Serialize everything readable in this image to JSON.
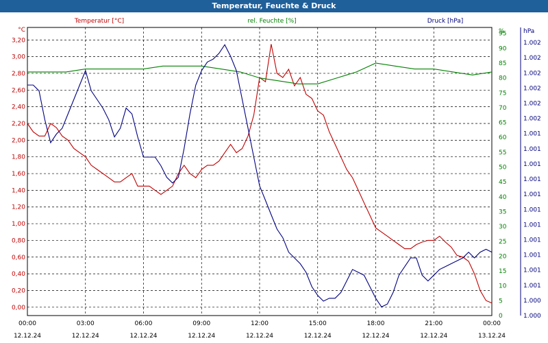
{
  "header": {
    "title": "Temperatur, Feuchte & Druck"
  },
  "chart_data": {
    "type": "line",
    "title": "Temperatur, Feuchte & Druck",
    "grid": true,
    "x_range": [
      "12.12.24 00:00",
      "13.12.24 00:00"
    ],
    "x_ticks": [
      {
        "time": "00:00",
        "date": "12.12.24"
      },
      {
        "time": "03:00",
        "date": "12.12.24"
      },
      {
        "time": "06:00",
        "date": "12.12.24"
      },
      {
        "time": "09:00",
        "date": "12.12.24"
      },
      {
        "time": "12:00",
        "date": "12.12.24"
      },
      {
        "time": "15:00",
        "date": "12.12.24"
      },
      {
        "time": "18:00",
        "date": "12.12.24"
      },
      {
        "time": "21:00",
        "date": "12.12.24"
      },
      {
        "time": "00:00",
        "date": "13.12.24"
      }
    ],
    "axes": {
      "temperature": {
        "unit": "°C",
        "range": [
          -0.1,
          3.35
        ],
        "ticks": [
          "0,00",
          "0,20",
          "0,40",
          "0,60",
          "0,80",
          "1,00",
          "1,20",
          "1,40",
          "1,60",
          "1,80",
          "2,00",
          "2,20",
          "2,40",
          "2,60",
          "2,80",
          "3,00",
          "3,20"
        ],
        "color": "#c00000"
      },
      "humidity": {
        "unit": "%",
        "range": [
          0,
          97
        ],
        "ticks": [
          "0",
          "5",
          "10",
          "15",
          "20",
          "25",
          "30",
          "35",
          "40",
          "45",
          "50",
          "55",
          "60",
          "65",
          "70",
          "75",
          "80",
          "85",
          "90",
          "95",
          "%"
        ],
        "color": "#008000"
      },
      "pressure": {
        "unit": "hPa",
        "range": [
          0,
          1
        ],
        "ticks": [
          "1.000",
          "1.000",
          "1.001",
          "1.001",
          "1.001",
          "1.001",
          "1.001",
          "1.001",
          "1.001",
          "1.001",
          "1.001",
          "1.001",
          "1.001",
          "1.002",
          "1.002",
          "1.002",
          "1.002",
          "1.002",
          "1.002",
          "hPa"
        ],
        "color": "#000080"
      }
    },
    "series": [
      {
        "name": "Temperatur [°C]",
        "axis": "temperature",
        "color": "#c00000",
        "x": [
          0,
          0.3,
          0.6,
          0.9,
          1.2,
          1.5,
          1.8,
          2.1,
          2.4,
          2.7,
          3,
          3.3,
          3.6,
          3.9,
          4.2,
          4.5,
          4.8,
          5.1,
          5.4,
          5.7,
          6,
          6.3,
          6.6,
          6.9,
          7.2,
          7.5,
          7.8,
          8.1,
          8.4,
          8.7,
          9,
          9.3,
          9.6,
          9.9,
          10.2,
          10.5,
          10.8,
          11.1,
          11.4,
          11.7,
          12,
          12.3,
          12.6,
          12.9,
          13.2,
          13.5,
          13.8,
          14.1,
          14.4,
          14.7,
          15,
          15.3,
          15.6,
          15.9,
          16.2,
          16.5,
          16.8,
          17.1,
          17.4,
          17.7,
          18,
          18.3,
          18.6,
          18.9,
          19.2,
          19.5,
          19.8,
          20.1,
          20.4,
          20.7,
          21,
          21.3,
          21.6,
          21.9,
          22.2,
          22.5,
          22.8,
          23.1,
          23.4,
          23.7,
          24
        ],
        "y": [
          2.2,
          2.1,
          2.05,
          2.05,
          2.2,
          2.15,
          2.05,
          2.0,
          1.9,
          1.85,
          1.8,
          1.7,
          1.65,
          1.6,
          1.55,
          1.5,
          1.5,
          1.55,
          1.6,
          1.45,
          1.45,
          1.45,
          1.4,
          1.35,
          1.4,
          1.45,
          1.6,
          1.7,
          1.6,
          1.55,
          1.65,
          1.7,
          1.7,
          1.75,
          1.85,
          1.95,
          1.85,
          1.9,
          2.05,
          2.3,
          2.75,
          2.7,
          3.15,
          2.8,
          2.75,
          2.85,
          2.65,
          2.75,
          2.55,
          2.5,
          2.35,
          2.3,
          2.1,
          1.95,
          1.8,
          1.65,
          1.55,
          1.4,
          1.25,
          1.1,
          0.95,
          0.9,
          0.85,
          0.8,
          0.75,
          0.7,
          0.7,
          0.75,
          0.78,
          0.8,
          0.8,
          0.85,
          0.78,
          0.72,
          0.62,
          0.6,
          0.55,
          0.4,
          0.2,
          0.08,
          0.05
        ]
      },
      {
        "name": "rel. Feuchte [%]",
        "axis": "humidity",
        "color": "#008000",
        "x": [
          0,
          1,
          2,
          3,
          4,
          5,
          6,
          7,
          8,
          9,
          10,
          11,
          12,
          13,
          14,
          15,
          16,
          17,
          18,
          19,
          20,
          21,
          22,
          23,
          24
        ],
        "y": [
          82,
          82,
          82,
          83,
          83,
          83,
          83,
          84,
          84,
          84,
          83,
          82,
          80,
          79,
          78,
          78,
          80,
          82,
          85,
          84,
          83,
          83,
          82,
          81,
          82
        ]
      },
      {
        "name": "Druck [hPa]",
        "axis": "pressure",
        "color": "#000080",
        "x": [
          0,
          0.3,
          0.6,
          0.9,
          1.2,
          1.5,
          1.8,
          2.1,
          2.4,
          2.7,
          3,
          3.3,
          3.6,
          3.9,
          4.2,
          4.5,
          4.8,
          5.1,
          5.4,
          5.7,
          6,
          6.3,
          6.6,
          6.9,
          7.2,
          7.5,
          7.8,
          8.1,
          8.4,
          8.7,
          9,
          9.3,
          9.6,
          9.9,
          10.2,
          10.5,
          10.8,
          11.1,
          11.4,
          11.7,
          12,
          12.3,
          12.6,
          12.9,
          13.2,
          13.5,
          13.8,
          14.1,
          14.4,
          14.7,
          15,
          15.3,
          15.6,
          15.9,
          16.2,
          16.5,
          16.8,
          17.1,
          17.4,
          17.7,
          18,
          18.3,
          18.6,
          18.9,
          19.2,
          19.5,
          19.8,
          20.1,
          20.4,
          20.7,
          21,
          21.3,
          21.6,
          21.9,
          22.2,
          22.5,
          22.8,
          23.1,
          23.4,
          23.7,
          24
        ],
        "y": [
          0.8,
          0.8,
          0.78,
          0.68,
          0.6,
          0.63,
          0.65,
          0.7,
          0.75,
          0.8,
          0.85,
          0.78,
          0.75,
          0.72,
          0.68,
          0.62,
          0.65,
          0.72,
          0.7,
          0.62,
          0.55,
          0.55,
          0.55,
          0.52,
          0.48,
          0.46,
          0.48,
          0.58,
          0.7,
          0.8,
          0.85,
          0.88,
          0.89,
          0.91,
          0.94,
          0.9,
          0.85,
          0.75,
          0.65,
          0.55,
          0.45,
          0.4,
          0.35,
          0.3,
          0.27,
          0.22,
          0.2,
          0.18,
          0.15,
          0.1,
          0.07,
          0.05,
          0.06,
          0.06,
          0.08,
          0.12,
          0.16,
          0.15,
          0.14,
          0.1,
          0.06,
          0.03,
          0.04,
          0.08,
          0.14,
          0.17,
          0.2,
          0.2,
          0.14,
          0.12,
          0.14,
          0.16,
          0.17,
          0.18,
          0.19,
          0.2,
          0.22,
          0.2,
          0.22,
          0.23,
          0.22
        ]
      }
    ]
  }
}
